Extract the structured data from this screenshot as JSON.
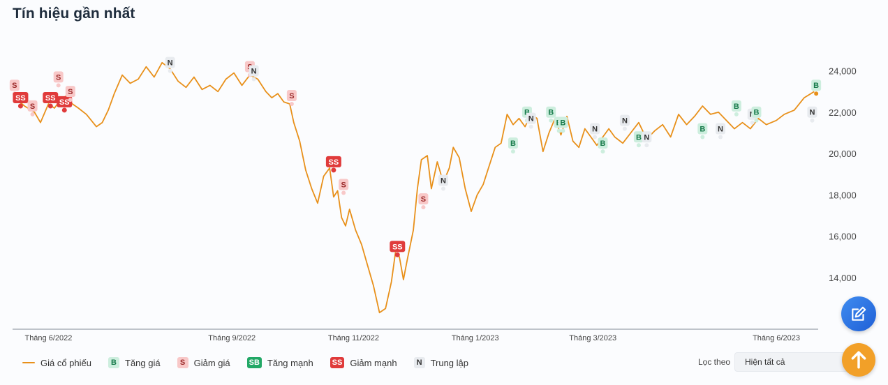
{
  "title": "Tín hiệu gần nhất",
  "legend": {
    "price": "Giá cổ phiếu",
    "items": [
      {
        "code": "B",
        "label": "Tăng giá"
      },
      {
        "code": "S",
        "label": "Giảm giá"
      },
      {
        "code": "SB",
        "label": "Tăng mạnh"
      },
      {
        "code": "SS",
        "label": "Giảm mạnh"
      },
      {
        "code": "N",
        "label": "Trung lập"
      }
    ]
  },
  "filter": {
    "label": "Lọc theo",
    "selected": "Hiện tất cả"
  },
  "buttons": {
    "edit_icon": "pencil-square-icon",
    "up_icon": "arrow-up-icon"
  },
  "colors": {
    "line": "#e8901a",
    "B": {
      "bg": "#cdeede",
      "fg": "#167a4a"
    },
    "S": {
      "bg": "#f8c8c8",
      "fg": "#9b2a2a"
    },
    "SB": {
      "bg": "#22a866",
      "fg": "#ffffff"
    },
    "SS": {
      "bg": "#e03b3b",
      "fg": "#ffffff"
    },
    "N": {
      "bg": "#e8ebef",
      "fg": "#333333"
    }
  },
  "chart_data": {
    "type": "line",
    "series": [
      {
        "name": "Giá cổ phiếu"
      }
    ],
    "ylim": [
      11500,
      25000
    ],
    "yticks": [
      24000,
      22000,
      20000,
      18000,
      16000,
      14000
    ],
    "ytick_labels": [
      "24,000",
      "22,000",
      "20,000",
      "18,000",
      "16,000",
      "14,000"
    ],
    "x_range": [
      "2022-05-14",
      "2023-06-22"
    ],
    "xticks": [
      {
        "date": "2022-06-01",
        "label": "Tháng 6/2022"
      },
      {
        "date": "2022-09-01",
        "label": "Tháng 9/2022"
      },
      {
        "date": "2022-11-01",
        "label": "Tháng 11/2022"
      },
      {
        "date": "2023-01-01",
        "label": "Tháng 1/2023"
      },
      {
        "date": "2023-03-01",
        "label": "Tháng 3/2023"
      },
      {
        "date": "2023-06-01",
        "label": "Tháng 6/2023"
      }
    ],
    "prices": [
      [
        "2022-05-15",
        22700
      ],
      [
        "2022-05-20",
        22300
      ],
      [
        "2022-05-25",
        22000
      ],
      [
        "2022-05-28",
        21500
      ],
      [
        "2022-06-01",
        22400
      ],
      [
        "2022-06-04",
        22200
      ],
      [
        "2022-06-07",
        22600
      ],
      [
        "2022-06-10",
        22800
      ],
      [
        "2022-06-13",
        22400
      ],
      [
        "2022-06-16",
        22200
      ],
      [
        "2022-06-20",
        21900
      ],
      [
        "2022-06-25",
        21300
      ],
      [
        "2022-06-28",
        21500
      ],
      [
        "2022-07-01",
        22100
      ],
      [
        "2022-07-04",
        22900
      ],
      [
        "2022-07-08",
        23800
      ],
      [
        "2022-07-12",
        23400
      ],
      [
        "2022-07-16",
        23600
      ],
      [
        "2022-07-20",
        24200
      ],
      [
        "2022-07-24",
        23700
      ],
      [
        "2022-07-28",
        24400
      ],
      [
        "2022-08-01",
        24100
      ],
      [
        "2022-08-05",
        23500
      ],
      [
        "2022-08-09",
        23200
      ],
      [
        "2022-08-13",
        23700
      ],
      [
        "2022-08-17",
        23100
      ],
      [
        "2022-08-21",
        23300
      ],
      [
        "2022-08-25",
        23000
      ],
      [
        "2022-08-29",
        23600
      ],
      [
        "2022-09-02",
        23900
      ],
      [
        "2022-09-06",
        23300
      ],
      [
        "2022-09-10",
        23800
      ],
      [
        "2022-09-14",
        23600
      ],
      [
        "2022-09-18",
        23000
      ],
      [
        "2022-09-21",
        22700
      ],
      [
        "2022-09-24",
        22900
      ],
      [
        "2022-09-27",
        22500
      ],
      [
        "2022-09-30",
        22400
      ],
      [
        "2022-10-02",
        21500
      ],
      [
        "2022-10-05",
        20600
      ],
      [
        "2022-10-08",
        19200
      ],
      [
        "2022-10-11",
        18300
      ],
      [
        "2022-10-14",
        17600
      ],
      [
        "2022-10-17",
        18900
      ],
      [
        "2022-10-20",
        19300
      ],
      [
        "2022-10-22",
        17900
      ],
      [
        "2022-10-24",
        18200
      ],
      [
        "2022-10-26",
        16900
      ],
      [
        "2022-10-28",
        16500
      ],
      [
        "2022-10-30",
        17300
      ],
      [
        "2022-11-02",
        16300
      ],
      [
        "2022-11-05",
        15600
      ],
      [
        "2022-11-08",
        14600
      ],
      [
        "2022-11-11",
        13600
      ],
      [
        "2022-11-14",
        12300
      ],
      [
        "2022-11-17",
        12500
      ],
      [
        "2022-11-20",
        13800
      ],
      [
        "2022-11-22",
        15200
      ],
      [
        "2022-11-24",
        15000
      ],
      [
        "2022-11-26",
        13900
      ],
      [
        "2022-11-28",
        14900
      ],
      [
        "2022-12-01",
        16300
      ],
      [
        "2022-12-03",
        18300
      ],
      [
        "2022-12-05",
        19700
      ],
      [
        "2022-12-08",
        19900
      ],
      [
        "2022-12-10",
        18300
      ],
      [
        "2022-12-13",
        19600
      ],
      [
        "2022-12-16",
        18600
      ],
      [
        "2022-12-19",
        19300
      ],
      [
        "2022-12-21",
        20300
      ],
      [
        "2022-12-24",
        19800
      ],
      [
        "2022-12-27",
        18300
      ],
      [
        "2022-12-30",
        17200
      ],
      [
        "2023-01-02",
        18000
      ],
      [
        "2023-01-05",
        18500
      ],
      [
        "2023-01-08",
        19400
      ],
      [
        "2023-01-11",
        20300
      ],
      [
        "2023-01-14",
        20500
      ],
      [
        "2023-01-17",
        21900
      ],
      [
        "2023-01-20",
        21400
      ],
      [
        "2023-01-23",
        21700
      ],
      [
        "2023-01-26",
        21300
      ],
      [
        "2023-01-29",
        21900
      ],
      [
        "2023-02-01",
        21700
      ],
      [
        "2023-02-04",
        20100
      ],
      [
        "2023-02-07",
        21000
      ],
      [
        "2023-02-10",
        21700
      ],
      [
        "2023-02-13",
        20900
      ],
      [
        "2023-02-16",
        21800
      ],
      [
        "2023-02-19",
        20600
      ],
      [
        "2023-02-22",
        20300
      ],
      [
        "2023-02-25",
        21200
      ],
      [
        "2023-02-28",
        20800
      ],
      [
        "2023-03-03",
        20400
      ],
      [
        "2023-03-06",
        20800
      ],
      [
        "2023-03-09",
        21200
      ],
      [
        "2023-03-12",
        20800
      ],
      [
        "2023-03-16",
        20500
      ],
      [
        "2023-03-20",
        21000
      ],
      [
        "2023-03-24",
        21500
      ],
      [
        "2023-03-28",
        20700
      ],
      [
        "2023-04-01",
        21100
      ],
      [
        "2023-04-05",
        21400
      ],
      [
        "2023-04-09",
        20800
      ],
      [
        "2023-04-13",
        21900
      ],
      [
        "2023-04-17",
        21400
      ],
      [
        "2023-04-21",
        21800
      ],
      [
        "2023-04-25",
        22300
      ],
      [
        "2023-04-29",
        21900
      ],
      [
        "2023-05-03",
        22000
      ],
      [
        "2023-05-07",
        21600
      ],
      [
        "2023-05-11",
        21200
      ],
      [
        "2023-05-15",
        21500
      ],
      [
        "2023-05-19",
        21200
      ],
      [
        "2023-05-23",
        21700
      ],
      [
        "2023-05-27",
        21400
      ],
      [
        "2023-06-01",
        21600
      ],
      [
        "2023-06-05",
        21900
      ],
      [
        "2023-06-10",
        22100
      ],
      [
        "2023-06-15",
        22700
      ],
      [
        "2023-06-20",
        23000
      ]
    ],
    "signals": [
      {
        "code": "S",
        "date": "2022-05-15",
        "price": 22900
      },
      {
        "code": "SS",
        "date": "2022-05-18",
        "price": 22300
      },
      {
        "code": "S",
        "date": "2022-05-24",
        "price": 21900
      },
      {
        "code": "SS",
        "date": "2022-06-02",
        "price": 22300
      },
      {
        "code": "S",
        "date": "2022-06-06",
        "price": 23300
      },
      {
        "code": "SS",
        "date": "2022-06-09",
        "price": 22100
      },
      {
        "code": "S",
        "date": "2022-06-12",
        "price": 22600
      },
      {
        "code": "N",
        "date": "2022-08-01",
        "price": 24000
      },
      {
        "code": "S",
        "date": "2022-09-10",
        "price": 23800
      },
      {
        "code": "N",
        "date": "2022-09-12",
        "price": 23600
      },
      {
        "code": "S",
        "date": "2022-10-01",
        "price": 22400
      },
      {
        "code": "SS",
        "date": "2022-10-22",
        "price": 19200
      },
      {
        "code": "S",
        "date": "2022-10-27",
        "price": 18100
      },
      {
        "code": "SS",
        "date": "2022-11-23",
        "price": 15100
      },
      {
        "code": "S",
        "date": "2022-12-06",
        "price": 17400
      },
      {
        "code": "N",
        "date": "2022-12-16",
        "price": 18300
      },
      {
        "code": "B",
        "date": "2023-01-20",
        "price": 20100
      },
      {
        "code": "B",
        "date": "2023-01-27",
        "price": 21600
      },
      {
        "code": "N",
        "date": "2023-01-29",
        "price": 21300
      },
      {
        "code": "B",
        "date": "2023-02-08",
        "price": 21600
      },
      {
        "code": "B",
        "date": "2023-02-12",
        "price": 21100
      },
      {
        "code": "B",
        "date": "2023-02-14",
        "price": 21100
      },
      {
        "code": "N",
        "date": "2023-03-02",
        "price": 20800
      },
      {
        "code": "B",
        "date": "2023-03-06",
        "price": 20100
      },
      {
        "code": "N",
        "date": "2023-03-17",
        "price": 21200
      },
      {
        "code": "B",
        "date": "2023-03-24",
        "price": 20400
      },
      {
        "code": "N",
        "date": "2023-03-28",
        "price": 20400
      },
      {
        "code": "B",
        "date": "2023-04-25",
        "price": 20800
      },
      {
        "code": "N",
        "date": "2023-05-04",
        "price": 20800
      },
      {
        "code": "B",
        "date": "2023-05-12",
        "price": 21900
      },
      {
        "code": "N",
        "date": "2023-05-20",
        "price": 21500
      },
      {
        "code": "B",
        "date": "2023-05-22",
        "price": 21600
      },
      {
        "code": "N",
        "date": "2023-06-19",
        "price": 21600
      },
      {
        "code": "B",
        "date": "2023-06-21",
        "price": 22900
      }
    ]
  }
}
